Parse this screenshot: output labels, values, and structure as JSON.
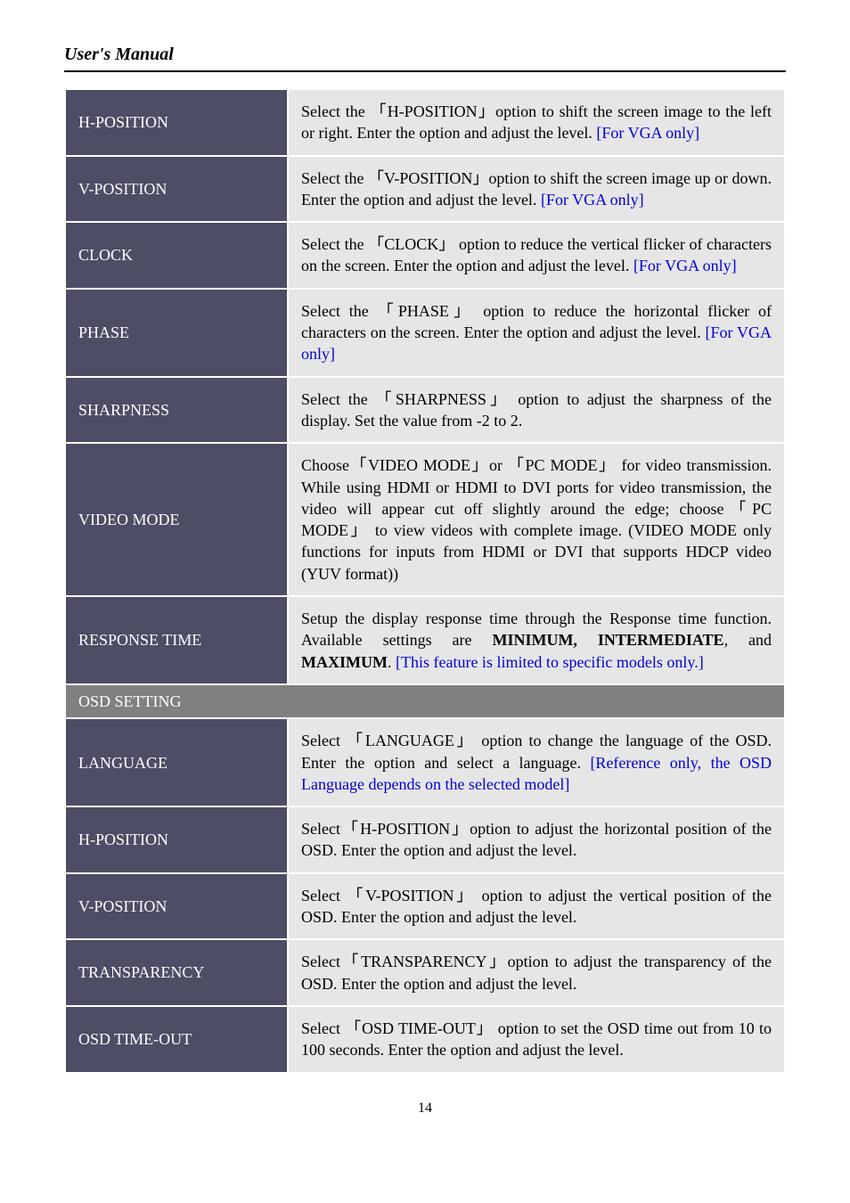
{
  "header": {
    "title": "User's Manual"
  },
  "rows": [
    {
      "type": "row",
      "label": "H-POSITION",
      "desc": "Select the 「H-POSITION」option to shift the screen image to the left or right. Enter the option and adjust the level. <span class=\"blue\">[For VGA only]</span>"
    },
    {
      "type": "row",
      "label": "V-POSITION",
      "desc": "Select the 「V-POSITION」option to shift the screen image up or down. Enter the option and adjust the level. <span class=\"blue\">[For VGA only]</span>"
    },
    {
      "type": "row",
      "label": "CLOCK",
      "desc": "Select the 「CLOCK」 option to reduce the vertical flicker of characters on the screen. Enter the option and adjust the level. <span class=\"blue\">[For VGA only]</span>"
    },
    {
      "type": "row",
      "label": "PHASE",
      "desc": "Select the 「PHASE」 option to reduce the horizontal flicker of characters on the screen. Enter the option and adjust the level. <span class=\"blue\">[For VGA only]</span>"
    },
    {
      "type": "row",
      "label": "SHARPNESS",
      "desc": "Select the 「SHARPNESS」 option to adjust the sharpness of the display. Set the value from -2 to 2."
    },
    {
      "type": "row",
      "label": "VIDEO MODE",
      "desc": "Choose「VIDEO MODE」or 「PC MODE」 for video transmission. While using HDMI or HDMI to DVI ports for video transmission, the video will appear cut off slightly around the edge; choose「PC MODE」 to view videos with complete image. (VIDEO MODE only functions for inputs from HDMI or DVI that supports HDCP video (YUV format))"
    },
    {
      "type": "row",
      "label": "RESPONSE TIME",
      "desc": "Setup the display response time through the Response time function. Available settings are <span class=\"bold\">MINIMUM, INTERMEDIATE</span>, and <span class=\"bold\">MAXIMUM</span>. <span class=\"blue\">[This feature is limited to specific models only.]</span>"
    },
    {
      "type": "section",
      "label": "OSD SETTING"
    },
    {
      "type": "row",
      "label": "LANGUAGE",
      "desc": "Select 「LANGUAGE」 option to change the language of the OSD. Enter the option and select a language. <span class=\"blue\">[Reference only, the OSD Language depends on the selected model]</span>"
    },
    {
      "type": "row",
      "label": "H-POSITION",
      "desc": "Select「H-POSITION」option to adjust the horizontal position of the OSD. Enter the option and adjust the level."
    },
    {
      "type": "row",
      "label": "V-POSITION",
      "desc": "Select 「V-POSITION」 option to adjust the vertical position of the OSD. Enter the option and adjust the level."
    },
    {
      "type": "row",
      "label": "TRANSPARENCY",
      "desc": "Select「TRANSPARENCY」option to adjust the transparency of the OSD. Enter the option and adjust the level."
    },
    {
      "type": "row",
      "label": "OSD TIME-OUT",
      "desc": "Select 「OSD TIME-OUT」 option to set the OSD time out from 10 to 100 seconds. Enter the option and adjust the level."
    }
  ],
  "page_number": "14"
}
